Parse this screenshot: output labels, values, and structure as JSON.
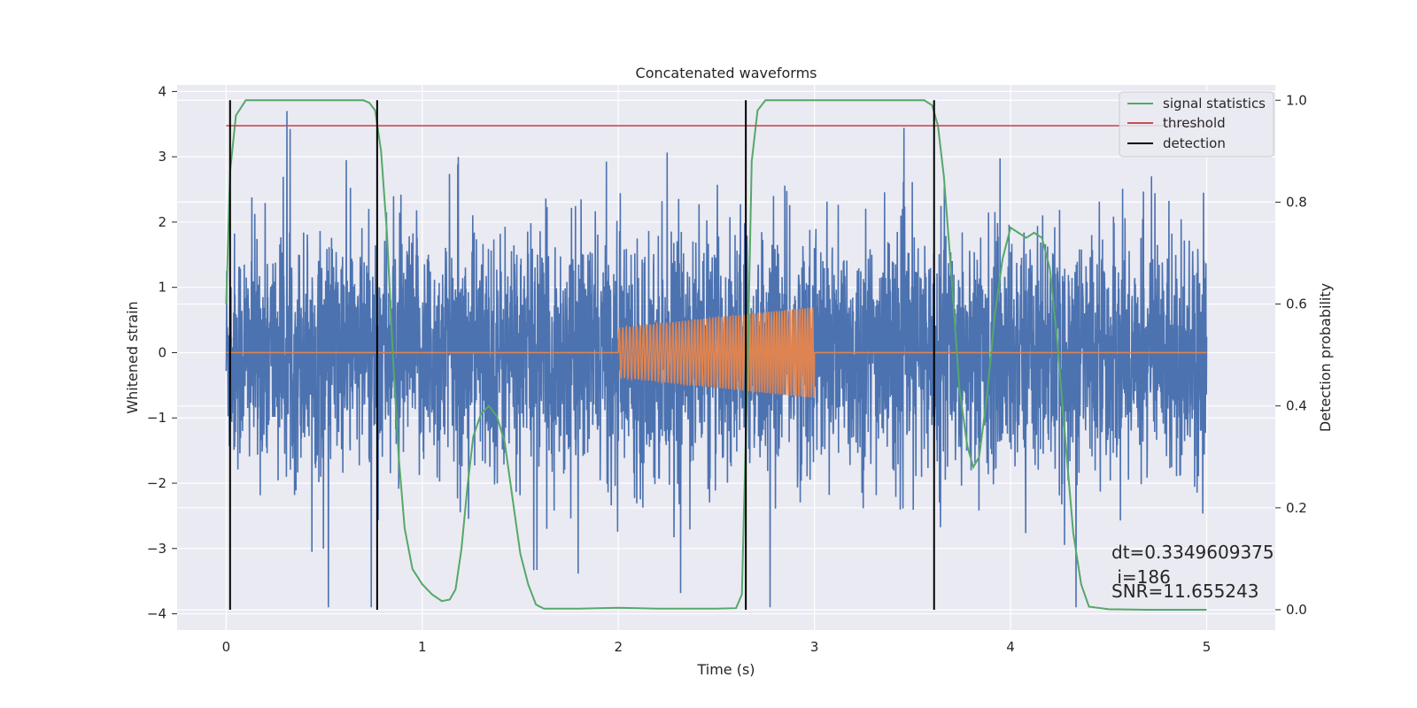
{
  "chart_data": {
    "type": "line",
    "title": "Concatenated waveforms",
    "xlabel": "Time (s)",
    "ylabel_left": "Whitened strain",
    "ylabel_right": "Detection probability",
    "xlim": [
      -0.25,
      5.35
    ],
    "ylim_left": [
      -4.25,
      4.1
    ],
    "ylim_right": [
      -0.04,
      1.03
    ],
    "xticks": [
      0,
      1,
      2,
      3,
      4,
      5
    ],
    "xtick_labels": [
      "0",
      "1",
      "2",
      "3",
      "4",
      "5"
    ],
    "yticks_left": [
      4,
      3,
      2,
      1,
      0,
      -1,
      -2,
      -3,
      -4
    ],
    "ytick_labels_left": [
      "4",
      "3",
      "2",
      "1",
      "0",
      "−1",
      "−2",
      "−3",
      "−4"
    ],
    "yticks_right": [
      1.0,
      0.8,
      0.6,
      0.4,
      0.2,
      0.0
    ],
    "ytick_labels_right": [
      "1.0",
      "0.8",
      "0.6",
      "0.4",
      "0.2",
      "0.0"
    ],
    "grid": true,
    "legend_placement": "top-right",
    "series": [
      {
        "name": "",
        "role": "whitened strain noise",
        "axis": "left",
        "color": "#4c72b0",
        "x_range": [
          0,
          5
        ],
        "typical_range": [
          -2.7,
          2.9
        ],
        "extremes": [
          -3.9,
          3.7
        ]
      },
      {
        "name": "",
        "role": "injected chirp waveform",
        "axis": "left",
        "color": "#dd8452",
        "x_range": [
          0,
          5
        ],
        "chirp_x_range": [
          2.0,
          3.0
        ],
        "chirp_amplitude": [
          0.38,
          0.7
        ]
      },
      {
        "name": "signal statistics",
        "axis": "right",
        "color": "#55a868",
        "points": [
          [
            0.0,
            0.6
          ],
          [
            0.02,
            0.86
          ],
          [
            0.05,
            0.97
          ],
          [
            0.1,
            1.0
          ],
          [
            0.3,
            1.0
          ],
          [
            0.5,
            1.0
          ],
          [
            0.7,
            1.0
          ],
          [
            0.73,
            0.995
          ],
          [
            0.76,
            0.98
          ],
          [
            0.79,
            0.9
          ],
          [
            0.82,
            0.74
          ],
          [
            0.85,
            0.5
          ],
          [
            0.88,
            0.3
          ],
          [
            0.91,
            0.16
          ],
          [
            0.95,
            0.08
          ],
          [
            1.0,
            0.05
          ],
          [
            1.05,
            0.03
          ],
          [
            1.1,
            0.017
          ],
          [
            1.14,
            0.02
          ],
          [
            1.17,
            0.04
          ],
          [
            1.2,
            0.12
          ],
          [
            1.23,
            0.24
          ],
          [
            1.26,
            0.34
          ],
          [
            1.3,
            0.385
          ],
          [
            1.34,
            0.4
          ],
          [
            1.38,
            0.38
          ],
          [
            1.42,
            0.33
          ],
          [
            1.46,
            0.22
          ],
          [
            1.5,
            0.11
          ],
          [
            1.54,
            0.05
          ],
          [
            1.58,
            0.01
          ],
          [
            1.62,
            0.002
          ],
          [
            1.8,
            0.002
          ],
          [
            2.0,
            0.004
          ],
          [
            2.2,
            0.002
          ],
          [
            2.5,
            0.002
          ],
          [
            2.6,
            0.003
          ],
          [
            2.63,
            0.03
          ],
          [
            2.66,
            0.5
          ],
          [
            2.68,
            0.88
          ],
          [
            2.71,
            0.98
          ],
          [
            2.75,
            1.0
          ],
          [
            3.0,
            1.0
          ],
          [
            3.4,
            1.0
          ],
          [
            3.56,
            1.0
          ],
          [
            3.6,
            0.99
          ],
          [
            3.63,
            0.95
          ],
          [
            3.66,
            0.85
          ],
          [
            3.7,
            0.65
          ],
          [
            3.74,
            0.43
          ],
          [
            3.78,
            0.32
          ],
          [
            3.81,
            0.28
          ],
          [
            3.84,
            0.3
          ],
          [
            3.88,
            0.42
          ],
          [
            3.92,
            0.58
          ],
          [
            3.96,
            0.69
          ],
          [
            4.0,
            0.75
          ],
          [
            4.04,
            0.74
          ],
          [
            4.08,
            0.73
          ],
          [
            4.12,
            0.74
          ],
          [
            4.16,
            0.73
          ],
          [
            4.2,
            0.67
          ],
          [
            4.24,
            0.52
          ],
          [
            4.28,
            0.33
          ],
          [
            4.32,
            0.15
          ],
          [
            4.36,
            0.05
          ],
          [
            4.4,
            0.006
          ],
          [
            4.5,
            0.001
          ],
          [
            4.7,
            0.0
          ],
          [
            5.0,
            0.0
          ]
        ]
      },
      {
        "name": "threshold",
        "axis": "right",
        "color": "#c44e52",
        "value": 0.95
      },
      {
        "name": "detection",
        "axis": "right",
        "color": "#000000",
        "x_values": [
          0.02,
          0.77,
          2.65,
          3.61
        ]
      }
    ],
    "annotations": [
      "dt=0.3349609375",
      " i=186",
      "SNR=11.655243"
    ],
    "colors": {
      "plot_background": "#eaeaf2",
      "grid": "#ffffff",
      "noise": "#4c72b0",
      "chirp": "#dd8452",
      "signal_statistics": "#55a868",
      "threshold": "#c44e52",
      "detection": "#000000"
    }
  }
}
